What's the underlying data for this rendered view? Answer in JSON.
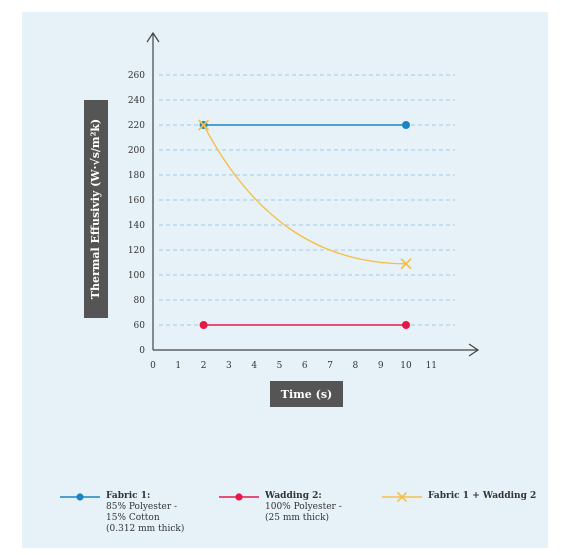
{
  "chart_data": {
    "type": "line",
    "xlabel": "Time (s)",
    "ylabel": "Thermal Effusiviy (W·√s/m²k)",
    "xlim": [
      0,
      11
    ],
    "ylim": [
      0,
      260
    ],
    "x_ticks": [
      "0",
      "1",
      "2",
      "3",
      "4",
      "5",
      "6",
      "7",
      "8",
      "9",
      "10",
      "11"
    ],
    "y_ticks": [
      "0",
      "60",
      "80",
      "100",
      "120",
      "140",
      "160",
      "180",
      "200",
      "220",
      "240",
      "260"
    ],
    "grid": true,
    "legend_position": "bottom",
    "series": [
      {
        "name": "Fabric 1:",
        "description": "85% Polyester -\n15% Cotton\n(0.312 mm thick)",
        "color": "#1a85c4",
        "marker": "circle",
        "x": [
          2,
          10
        ],
        "y": [
          220,
          220
        ]
      },
      {
        "name": "Wadding 2:",
        "description": "100% Polyester -\n(25 mm thick)",
        "color": "#e8174a",
        "marker": "circle",
        "x": [
          2,
          10
        ],
        "y": [
          60,
          60
        ]
      },
      {
        "name": "Fabric 1 + Wadding 2",
        "description": "",
        "color": "#f5c04a",
        "marker": "x",
        "x": [
          2,
          10
        ],
        "y": [
          220,
          109
        ]
      }
    ]
  }
}
